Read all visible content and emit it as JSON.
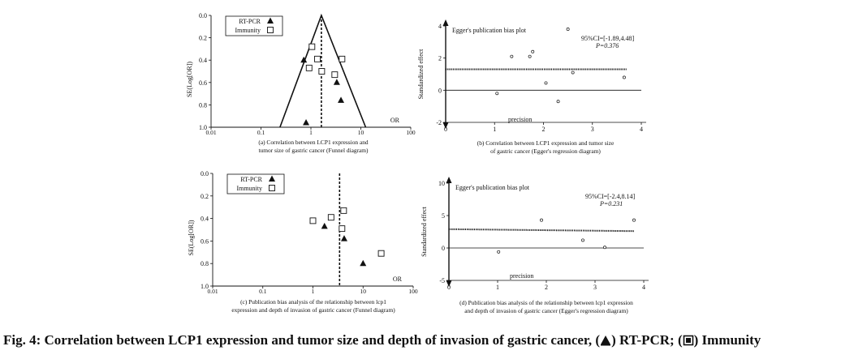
{
  "figure": {
    "caption": {
      "prefix": "Fig. 4: Correlation between LCP1 expression and tumor size and depth of invasion of gastric cancer, (",
      "mid": ") RT-PCR; (",
      "suffix": ") Immunity"
    }
  },
  "chart_data": [
    {
      "type": "scatter",
      "title": "",
      "caption_lines": [
        "(a) Correlation between LCP1 expression and",
        "tumor size of gastric cancer (Funnel diagram)"
      ],
      "xlabel": "OR",
      "ylabel": "SE(Log[OR])",
      "x_scale": "log",
      "xlim": [
        0.01,
        100
      ],
      "ylim": [
        1.0,
        0.0
      ],
      "x_ticks": [
        {
          "v": 0.01,
          "t": "0.01"
        },
        {
          "v": 0.1,
          "t": "0.1"
        },
        {
          "v": 1,
          "t": "1"
        },
        {
          "v": 10,
          "t": "10"
        },
        {
          "v": 100,
          "t": "100"
        }
      ],
      "y_ticks": [
        {
          "v": 0.0,
          "t": "0.0"
        },
        {
          "v": 0.2,
          "t": "0.2"
        },
        {
          "v": 0.4,
          "t": "0.4"
        },
        {
          "v": 0.6,
          "t": "0.6"
        },
        {
          "v": 0.8,
          "t": "0.8"
        },
        {
          "v": 1.0,
          "t": "1.0"
        }
      ],
      "legend": [
        "RT-PCR",
        "Immunity"
      ],
      "legend_position": "top-left",
      "funnel": {
        "center_or": 1.62,
        "apex_se": 0.0,
        "base_se": 1.0,
        "left_base_or": 0.24,
        "right_base_or": 12.5
      },
      "series": [
        {
          "name": "RT-PCR",
          "marker": "triangle",
          "points": [
            {
              "x": 0.72,
              "y": 0.4
            },
            {
              "x": 3.3,
              "y": 0.6
            },
            {
              "x": 4.0,
              "y": 0.76
            },
            {
              "x": 0.8,
              "y": 0.96
            }
          ]
        },
        {
          "name": "Immunity",
          "marker": "square",
          "points": [
            {
              "x": 1.05,
              "y": 0.28
            },
            {
              "x": 1.35,
              "y": 0.39
            },
            {
              "x": 4.2,
              "y": 0.39
            },
            {
              "x": 0.92,
              "y": 0.47
            },
            {
              "x": 1.65,
              "y": 0.5
            },
            {
              "x": 3.0,
              "y": 0.53
            }
          ]
        }
      ]
    },
    {
      "type": "scatter",
      "title": "Egger's publication bias plot",
      "caption_lines": [
        "(b) Correlation between LCP1 expression and tumor size",
        "of gastric cancer (Egger's regression diagram)"
      ],
      "xlabel": "precision",
      "ylabel": "Standardized effect",
      "xlim": [
        0,
        4
      ],
      "ylim": [
        -2,
        4
      ],
      "x_ticks": [
        0,
        1,
        2,
        3,
        4
      ],
      "y_ticks": [
        -2,
        0,
        2,
        4
      ],
      "annotation": [
        "95%CI=[-1.89,4.48]",
        "P=0.376"
      ],
      "regression_line": {
        "x": [
          0,
          3.7
        ],
        "y": [
          1.3,
          1.3
        ]
      },
      "points": [
        {
          "x": 1.05,
          "y": -0.2
        },
        {
          "x": 1.35,
          "y": 2.1
        },
        {
          "x": 1.72,
          "y": 2.1
        },
        {
          "x": 1.78,
          "y": 2.4
        },
        {
          "x": 2.05,
          "y": 0.45
        },
        {
          "x": 2.3,
          "y": -0.7
        },
        {
          "x": 2.5,
          "y": 3.8
        },
        {
          "x": 2.6,
          "y": 1.1
        },
        {
          "x": 3.65,
          "y": 0.8
        }
      ]
    },
    {
      "type": "scatter",
      "title": "",
      "caption_lines": [
        "(c) Publication bias analysis of the relationship between lcp1",
        "expression and depth of invasion of gastric cancer (Funnel diagram)"
      ],
      "xlabel": "OR",
      "ylabel": "SE(Log[OR])",
      "x_scale": "log",
      "xlim": [
        0.01,
        100
      ],
      "ylim": [
        1.0,
        0.0
      ],
      "x_ticks": [
        {
          "v": 0.01,
          "t": "0.01"
        },
        {
          "v": 0.1,
          "t": "0.1"
        },
        {
          "v": 1,
          "t": "1"
        },
        {
          "v": 10,
          "t": "10"
        },
        {
          "v": 100,
          "t": "100"
        }
      ],
      "y_ticks": [
        {
          "v": 0.0,
          "t": "0.0"
        },
        {
          "v": 0.2,
          "t": "0.2"
        },
        {
          "v": 0.4,
          "t": "0.4"
        },
        {
          "v": 0.6,
          "t": "0.6"
        },
        {
          "v": 0.8,
          "t": "0.8"
        },
        {
          "v": 1.0,
          "t": "1.0"
        }
      ],
      "legend": [
        "RT-PCR",
        "Immunity"
      ],
      "legend_position": "top-left",
      "center_or": 3.4,
      "series": [
        {
          "name": "RT-PCR",
          "marker": "triangle",
          "points": [
            {
              "x": 1.7,
              "y": 0.47
            },
            {
              "x": 4.2,
              "y": 0.58
            },
            {
              "x": 10.0,
              "y": 0.8
            }
          ]
        },
        {
          "name": "Immunity",
          "marker": "square",
          "points": [
            {
              "x": 1.0,
              "y": 0.42
            },
            {
              "x": 2.3,
              "y": 0.39
            },
            {
              "x": 4.1,
              "y": 0.33
            },
            {
              "x": 3.8,
              "y": 0.49
            },
            {
              "x": 23.0,
              "y": 0.71
            }
          ]
        }
      ]
    },
    {
      "type": "scatter",
      "title": "Egger's publication bias plot",
      "caption_lines": [
        "(d) Publication bias analysis of the relationship between lcp1 expression",
        "and depth of invasion of gastric cancer (Egger's regression diagram)"
      ],
      "xlabel": "precision",
      "ylabel": "Standardized effect",
      "xlim": [
        0,
        4
      ],
      "ylim": [
        -5,
        10
      ],
      "x_ticks": [
        0,
        1,
        2,
        3,
        4
      ],
      "y_ticks": [
        -5,
        0,
        5,
        10
      ],
      "annotation": [
        "95%CI=[-2.4,8.14]",
        "P=0.231"
      ],
      "regression_line": {
        "x": [
          0,
          3.8
        ],
        "y": [
          2.9,
          2.6
        ]
      },
      "points": [
        {
          "x": 1.02,
          "y": -0.6
        },
        {
          "x": 1.9,
          "y": 4.3
        },
        {
          "x": 2.75,
          "y": 1.2
        },
        {
          "x": 3.2,
          "y": 0.1
        },
        {
          "x": 3.8,
          "y": 4.3
        }
      ]
    }
  ],
  "colors": {
    "ink": "#111111",
    "point_open": "#ffffff"
  }
}
